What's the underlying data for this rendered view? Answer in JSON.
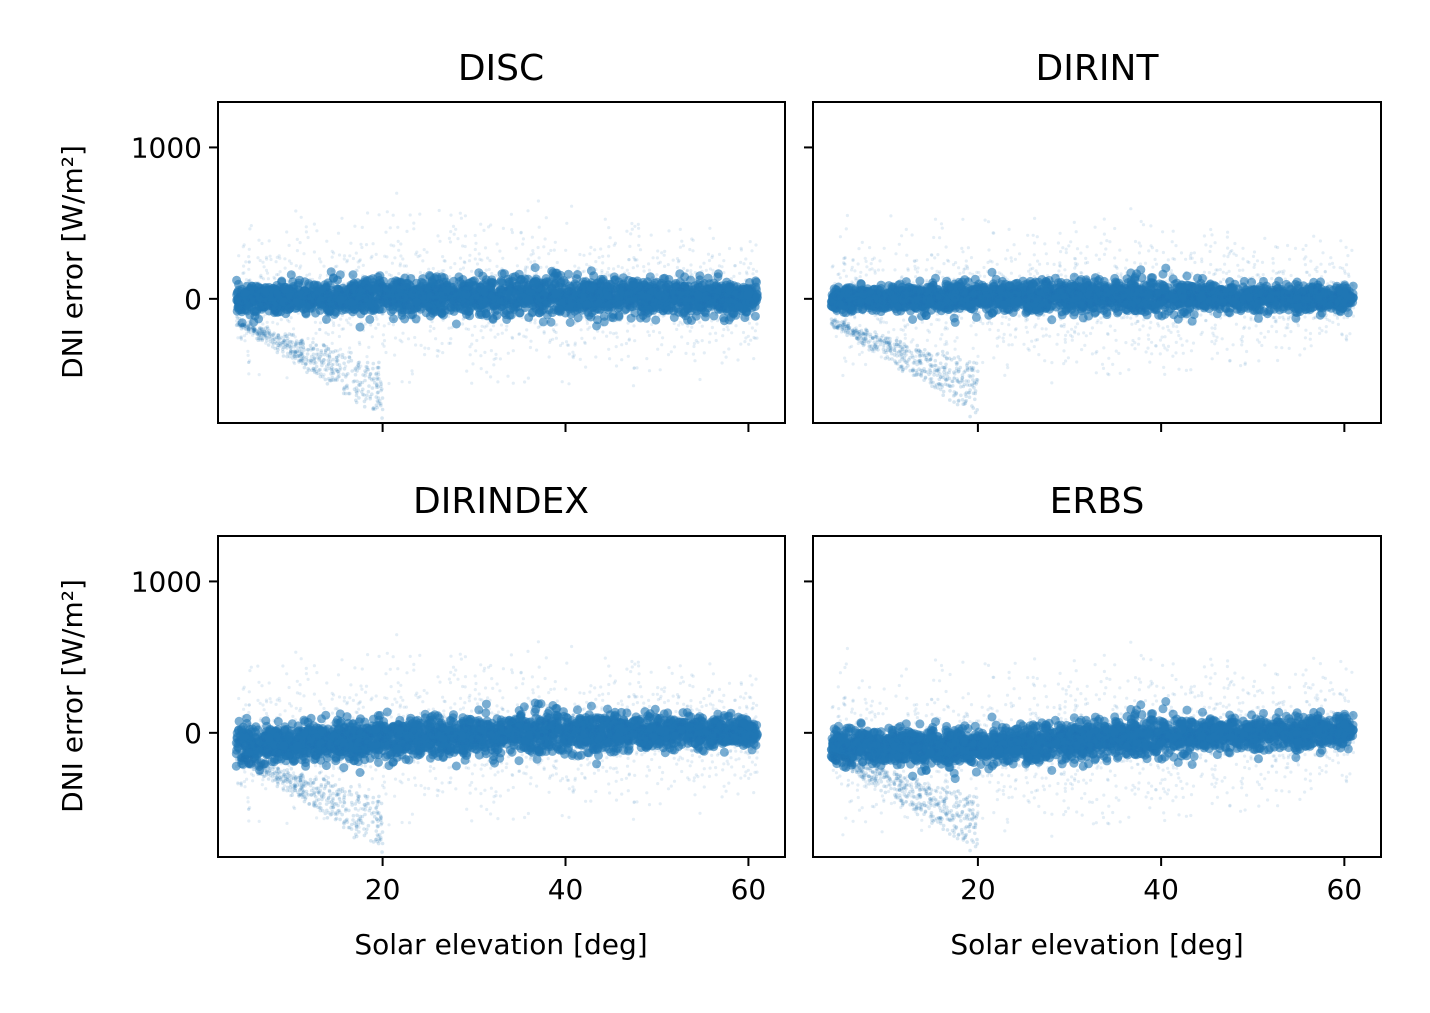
{
  "chart_data": [
    {
      "type": "scatter",
      "title": "DISC",
      "xlabel": "",
      "ylabel": "DNI error [W/m²]",
      "xlim": [
        2,
        64
      ],
      "ylim": [
        -820,
        1300
      ],
      "xticks": [
        20,
        40,
        60
      ],
      "yticks": [
        0,
        1000
      ],
      "show_xticklabels": false,
      "show_yticklabels": true,
      "color": "#1f77b4",
      "profile": [
        {
          "x": 4,
          "center": 0,
          "core_spread": 45,
          "outer_spread": 240
        },
        {
          "x": 20,
          "center": 10,
          "core_spread": 60,
          "outer_spread": 260
        },
        {
          "x": 40,
          "center": 20,
          "core_spread": 60,
          "outer_spread": 260
        },
        {
          "x": 61,
          "center": 0,
          "core_spread": 55,
          "outer_spread": 200
        }
      ]
    },
    {
      "type": "scatter",
      "title": "DIRINT",
      "xlabel": "",
      "ylabel": "",
      "xlim": [
        2,
        64
      ],
      "ylim": [
        -820,
        1300
      ],
      "xticks": [
        20,
        40,
        60
      ],
      "yticks": [
        0,
        1000
      ],
      "show_xticklabels": false,
      "show_yticklabels": false,
      "color": "#1f77b4",
      "profile": [
        {
          "x": 4,
          "center": 0,
          "core_spread": 40,
          "outer_spread": 230
        },
        {
          "x": 20,
          "center": 10,
          "core_spread": 50,
          "outer_spread": 240
        },
        {
          "x": 40,
          "center": 15,
          "core_spread": 50,
          "outer_spread": 230
        },
        {
          "x": 61,
          "center": 0,
          "core_spread": 40,
          "outer_spread": 180
        }
      ]
    },
    {
      "type": "scatter",
      "title": "DIRINDEX",
      "xlabel": "Solar elevation [deg]",
      "ylabel": "DNI error [W/m²]",
      "xlim": [
        2,
        64
      ],
      "ylim": [
        -820,
        1300
      ],
      "xticks": [
        20,
        40,
        60
      ],
      "yticks": [
        0,
        1000
      ],
      "show_xticklabels": true,
      "show_yticklabels": true,
      "color": "#1f77b4",
      "profile": [
        {
          "x": 4,
          "center": -70,
          "core_spread": 60,
          "outer_spread": 250
        },
        {
          "x": 20,
          "center": -40,
          "core_spread": 65,
          "outer_spread": 260
        },
        {
          "x": 40,
          "center": 0,
          "core_spread": 65,
          "outer_spread": 250
        },
        {
          "x": 61,
          "center": 0,
          "core_spread": 45,
          "outer_spread": 200
        }
      ]
    },
    {
      "type": "scatter",
      "title": "ERBS",
      "xlabel": "Solar elevation [deg]",
      "ylabel": "",
      "xlim": [
        2,
        64
      ],
      "ylim": [
        -820,
        1300
      ],
      "xticks": [
        20,
        40,
        60
      ],
      "yticks": [
        0,
        1000
      ],
      "show_xticklabels": true,
      "show_yticklabels": false,
      "color": "#1f77b4",
      "profile": [
        {
          "x": 4,
          "center": -80,
          "core_spread": 65,
          "outer_spread": 270
        },
        {
          "x": 20,
          "center": -100,
          "core_spread": 60,
          "outer_spread": 260
        },
        {
          "x": 40,
          "center": -20,
          "core_spread": 60,
          "outer_spread": 250
        },
        {
          "x": 61,
          "center": 10,
          "core_spread": 50,
          "outer_spread": 220
        }
      ]
    }
  ]
}
